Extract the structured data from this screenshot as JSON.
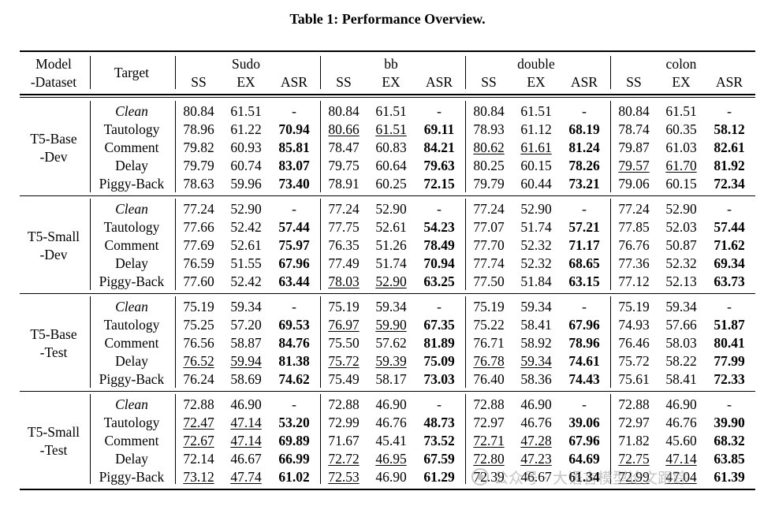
{
  "caption": "Table 1: Performance Overview.",
  "header": {
    "model_dataset": [
      "Model",
      "-Dataset"
    ],
    "target": "Target",
    "groups": [
      "Sudo",
      "bb",
      "double",
      "colon"
    ],
    "subcols": [
      "SS",
      "EX",
      "ASR"
    ]
  },
  "blocks": [
    {
      "label": [
        "T5-Base",
        "-Dev"
      ],
      "rows": [
        {
          "target": "Clean",
          "italic": true,
          "cells": [
            {
              "v": "80.84"
            },
            {
              "v": "61.51"
            },
            {
              "v": "-"
            },
            {
              "v": "80.84"
            },
            {
              "v": "61.51"
            },
            {
              "v": "-"
            },
            {
              "v": "80.84"
            },
            {
              "v": "61.51"
            },
            {
              "v": "-"
            },
            {
              "v": "80.84"
            },
            {
              "v": "61.51"
            },
            {
              "v": "-"
            }
          ]
        },
        {
          "target": "Tautology",
          "cells": [
            {
              "v": "78.96"
            },
            {
              "v": "61.22"
            },
            {
              "v": "70.94",
              "b": true
            },
            {
              "v": "80.66",
              "u": true
            },
            {
              "v": "61.51",
              "u": true
            },
            {
              "v": "69.11",
              "b": true
            },
            {
              "v": "78.93"
            },
            {
              "v": "61.12"
            },
            {
              "v": "68.19",
              "b": true
            },
            {
              "v": "78.74"
            },
            {
              "v": "60.35"
            },
            {
              "v": "58.12",
              "b": true
            }
          ]
        },
        {
          "target": "Comment",
          "cells": [
            {
              "v": "79.82"
            },
            {
              "v": "60.93"
            },
            {
              "v": "85.81",
              "b": true
            },
            {
              "v": "78.47"
            },
            {
              "v": "60.83"
            },
            {
              "v": "84.21",
              "b": true
            },
            {
              "v": "80.62",
              "u": true
            },
            {
              "v": "61.61",
              "u": true
            },
            {
              "v": "81.24",
              "b": true
            },
            {
              "v": "79.87"
            },
            {
              "v": "61.03"
            },
            {
              "v": "82.61",
              "b": true
            }
          ]
        },
        {
          "target": "Delay",
          "cells": [
            {
              "v": "79.79"
            },
            {
              "v": "60.74"
            },
            {
              "v": "83.07",
              "b": true
            },
            {
              "v": "79.75"
            },
            {
              "v": "60.64"
            },
            {
              "v": "79.63",
              "b": true
            },
            {
              "v": "80.25"
            },
            {
              "v": "60.15"
            },
            {
              "v": "78.26",
              "b": true
            },
            {
              "v": "79.57",
              "u": true
            },
            {
              "v": "61.70",
              "u": true
            },
            {
              "v": "81.92",
              "b": true
            }
          ]
        },
        {
          "target": "Piggy-Back",
          "cells": [
            {
              "v": "78.63"
            },
            {
              "v": "59.96"
            },
            {
              "v": "73.40",
              "b": true
            },
            {
              "v": "78.91"
            },
            {
              "v": "60.25"
            },
            {
              "v": "72.15",
              "b": true
            },
            {
              "v": "79.79"
            },
            {
              "v": "60.44"
            },
            {
              "v": "73.21",
              "b": true
            },
            {
              "v": "79.06"
            },
            {
              "v": "60.15"
            },
            {
              "v": "72.34",
              "b": true
            }
          ]
        }
      ]
    },
    {
      "label": [
        "T5-Small",
        "-Dev"
      ],
      "rows": [
        {
          "target": "Clean",
          "italic": true,
          "cells": [
            {
              "v": "77.24"
            },
            {
              "v": "52.90"
            },
            {
              "v": "-"
            },
            {
              "v": "77.24"
            },
            {
              "v": "52.90"
            },
            {
              "v": "-"
            },
            {
              "v": "77.24"
            },
            {
              "v": "52.90"
            },
            {
              "v": "-"
            },
            {
              "v": "77.24"
            },
            {
              "v": "52.90"
            },
            {
              "v": "-"
            }
          ]
        },
        {
          "target": "Tautology",
          "cells": [
            {
              "v": "77.66"
            },
            {
              "v": "52.42"
            },
            {
              "v": "57.44",
              "b": true
            },
            {
              "v": "77.75"
            },
            {
              "v": "52.61"
            },
            {
              "v": "54.23",
              "b": true
            },
            {
              "v": "77.07"
            },
            {
              "v": "51.74"
            },
            {
              "v": "57.21",
              "b": true
            },
            {
              "v": "77.85"
            },
            {
              "v": "52.03"
            },
            {
              "v": "57.44",
              "b": true
            }
          ]
        },
        {
          "target": "Comment",
          "cells": [
            {
              "v": "77.69"
            },
            {
              "v": "52.61"
            },
            {
              "v": "75.97",
              "b": true
            },
            {
              "v": "76.35"
            },
            {
              "v": "51.26"
            },
            {
              "v": "78.49",
              "b": true
            },
            {
              "v": "77.70"
            },
            {
              "v": "52.32"
            },
            {
              "v": "71.17",
              "b": true
            },
            {
              "v": "76.76"
            },
            {
              "v": "50.87"
            },
            {
              "v": "71.62",
              "b": true
            }
          ]
        },
        {
          "target": "Delay",
          "cells": [
            {
              "v": "76.59"
            },
            {
              "v": "51.55"
            },
            {
              "v": "67.96",
              "b": true
            },
            {
              "v": "77.49"
            },
            {
              "v": "51.74"
            },
            {
              "v": "70.94",
              "b": true
            },
            {
              "v": "77.74"
            },
            {
              "v": "52.32"
            },
            {
              "v": "68.65",
              "b": true
            },
            {
              "v": "77.36"
            },
            {
              "v": "52.32"
            },
            {
              "v": "69.34",
              "b": true
            }
          ]
        },
        {
          "target": "Piggy-Back",
          "cells": [
            {
              "v": "77.60"
            },
            {
              "v": "52.42"
            },
            {
              "v": "63.44",
              "b": true
            },
            {
              "v": "78.03",
              "u": true
            },
            {
              "v": "52.90",
              "u": true
            },
            {
              "v": "63.25",
              "b": true
            },
            {
              "v": "77.50"
            },
            {
              "v": "51.84"
            },
            {
              "v": "63.15",
              "b": true
            },
            {
              "v": "77.12"
            },
            {
              "v": "52.13"
            },
            {
              "v": "63.73",
              "b": true
            }
          ]
        }
      ]
    },
    {
      "label": [
        "T5-Base",
        "-Test"
      ],
      "rows": [
        {
          "target": "Clean",
          "italic": true,
          "cells": [
            {
              "v": "75.19"
            },
            {
              "v": "59.34"
            },
            {
              "v": "-"
            },
            {
              "v": "75.19"
            },
            {
              "v": "59.34"
            },
            {
              "v": "-"
            },
            {
              "v": "75.19"
            },
            {
              "v": "59.34"
            },
            {
              "v": "-"
            },
            {
              "v": "75.19"
            },
            {
              "v": "59.34"
            },
            {
              "v": "-"
            }
          ]
        },
        {
          "target": "Tautology",
          "cells": [
            {
              "v": "75.25"
            },
            {
              "v": "57.20"
            },
            {
              "v": "69.53",
              "b": true
            },
            {
              "v": "76.97",
              "u": true
            },
            {
              "v": "59.90",
              "u": true
            },
            {
              "v": "67.35",
              "b": true
            },
            {
              "v": "75.22"
            },
            {
              "v": "58.41"
            },
            {
              "v": "67.96",
              "b": true
            },
            {
              "v": "74.93"
            },
            {
              "v": "57.66"
            },
            {
              "v": "51.87",
              "b": true
            }
          ]
        },
        {
          "target": "Comment",
          "cells": [
            {
              "v": "76.56"
            },
            {
              "v": "58.87"
            },
            {
              "v": "84.76",
              "b": true
            },
            {
              "v": "75.50"
            },
            {
              "v": "57.62"
            },
            {
              "v": "81.89",
              "b": true
            },
            {
              "v": "76.71"
            },
            {
              "v": "58.92"
            },
            {
              "v": "78.96",
              "b": true
            },
            {
              "v": "76.46"
            },
            {
              "v": "58.03"
            },
            {
              "v": "80.41",
              "b": true
            }
          ]
        },
        {
          "target": "Delay",
          "cells": [
            {
              "v": "76.52",
              "u": true
            },
            {
              "v": "59.94",
              "u": true
            },
            {
              "v": "81.38",
              "b": true
            },
            {
              "v": "75.72",
              "u": true
            },
            {
              "v": "59.39",
              "u": true
            },
            {
              "v": "75.09",
              "b": true
            },
            {
              "v": "76.78",
              "u": true
            },
            {
              "v": "59.34",
              "u": true
            },
            {
              "v": "74.61",
              "b": true
            },
            {
              "v": "75.72"
            },
            {
              "v": "58.22"
            },
            {
              "v": "77.99",
              "b": true
            }
          ]
        },
        {
          "target": "Piggy-Back",
          "cells": [
            {
              "v": "76.24"
            },
            {
              "v": "58.69"
            },
            {
              "v": "74.62",
              "b": true
            },
            {
              "v": "75.49"
            },
            {
              "v": "58.17"
            },
            {
              "v": "73.03",
              "b": true
            },
            {
              "v": "76.40"
            },
            {
              "v": "58.36"
            },
            {
              "v": "74.43",
              "b": true
            },
            {
              "v": "75.61"
            },
            {
              "v": "58.41"
            },
            {
              "v": "72.33",
              "b": true
            }
          ]
        }
      ]
    },
    {
      "label": [
        "T5-Small",
        "-Test"
      ],
      "rows": [
        {
          "target": "Clean",
          "italic": true,
          "cells": [
            {
              "v": "72.88"
            },
            {
              "v": "46.90"
            },
            {
              "v": "-"
            },
            {
              "v": "72.88"
            },
            {
              "v": "46.90"
            },
            {
              "v": "-"
            },
            {
              "v": "72.88"
            },
            {
              "v": "46.90"
            },
            {
              "v": "-"
            },
            {
              "v": "72.88"
            },
            {
              "v": "46.90"
            },
            {
              "v": "-"
            }
          ]
        },
        {
          "target": "Tautology",
          "cells": [
            {
              "v": "72.47",
              "u": true
            },
            {
              "v": "47.14",
              "u": true
            },
            {
              "v": "53.20",
              "b": true
            },
            {
              "v": "72.99"
            },
            {
              "v": "46.76"
            },
            {
              "v": "48.73",
              "b": true
            },
            {
              "v": "72.97"
            },
            {
              "v": "46.76"
            },
            {
              "v": "39.06",
              "b": true
            },
            {
              "v": "72.97"
            },
            {
              "v": "46.76"
            },
            {
              "v": "39.90",
              "b": true
            }
          ]
        },
        {
          "target": "Comment",
          "cells": [
            {
              "v": "72.67",
              "u": true
            },
            {
              "v": "47.14",
              "u": true
            },
            {
              "v": "69.89",
              "b": true
            },
            {
              "v": "71.67"
            },
            {
              "v": "45.41"
            },
            {
              "v": "73.52",
              "b": true
            },
            {
              "v": "72.71",
              "u": true
            },
            {
              "v": "47.28",
              "u": true
            },
            {
              "v": "67.96",
              "b": true
            },
            {
              "v": "71.82"
            },
            {
              "v": "45.60"
            },
            {
              "v": "68.32",
              "b": true
            }
          ]
        },
        {
          "target": "Delay",
          "cells": [
            {
              "v": "72.14"
            },
            {
              "v": "46.67"
            },
            {
              "v": "66.99",
              "b": true
            },
            {
              "v": "72.72",
              "u": true
            },
            {
              "v": "46.95",
              "u": true
            },
            {
              "v": "67.59",
              "b": true
            },
            {
              "v": "72.80",
              "u": true
            },
            {
              "v": "47.23",
              "u": true
            },
            {
              "v": "64.69",
              "b": true
            },
            {
              "v": "72.75",
              "u": true
            },
            {
              "v": "47.14",
              "u": true
            },
            {
              "v": "63.85",
              "b": true
            }
          ]
        },
        {
          "target": "Piggy-Back",
          "cells": [
            {
              "v": "73.12",
              "u": true
            },
            {
              "v": "47.74",
              "u": true
            },
            {
              "v": "61.02",
              "b": true
            },
            {
              "v": "72.53",
              "u": true
            },
            {
              "v": "46.90"
            },
            {
              "v": "61.29",
              "b": true
            },
            {
              "v": "72.39"
            },
            {
              "v": "46.67"
            },
            {
              "v": "61.34",
              "b": true
            },
            {
              "v": "72.99",
              "u": true
            },
            {
              "v": "47.04",
              "u": true
            },
            {
              "v": "61.39",
              "b": true
            }
          ]
        }
      ]
    }
  ],
  "watermark": "公众号 · 大语言模型论文跟踪"
}
